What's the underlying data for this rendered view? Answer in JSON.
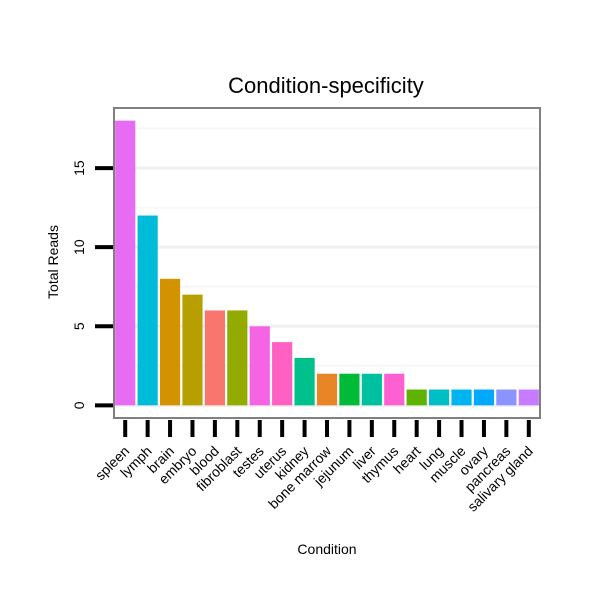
{
  "chart_data": {
    "type": "bar",
    "title": "Condition-specificity",
    "xlabel": "Condition",
    "ylabel": "Total Reads",
    "ylim": [
      -0.8,
      18.8
    ],
    "yticks": [
      0,
      5,
      10,
      15
    ],
    "grid": true,
    "legend": "none",
    "categories": [
      "spleen",
      "lymph",
      "brain",
      "embryo",
      "blood",
      "fibroblast",
      "testes",
      "uterus",
      "kidney",
      "bone marrow",
      "jejunum",
      "liver",
      "thymus",
      "heart",
      "lung",
      "muscle",
      "ovary",
      "pancreas",
      "salivary gland"
    ],
    "values": [
      18,
      12,
      8,
      7,
      6,
      6,
      5,
      4,
      3,
      2,
      2,
      2,
      2,
      1,
      1,
      1,
      1,
      1,
      1
    ],
    "colors": [
      "#E76BF3",
      "#00BCD8",
      "#D39200",
      "#B79F00",
      "#F8766D",
      "#93AA00",
      "#F564E3",
      "#FF61C3",
      "#00C08B",
      "#E88526",
      "#00BA38",
      "#00C19F",
      "#FD61D1",
      "#5EB300",
      "#00BFC4",
      "#00B4F0",
      "#00A9FF",
      "#8B93FF",
      "#C77CFF"
    ]
  }
}
